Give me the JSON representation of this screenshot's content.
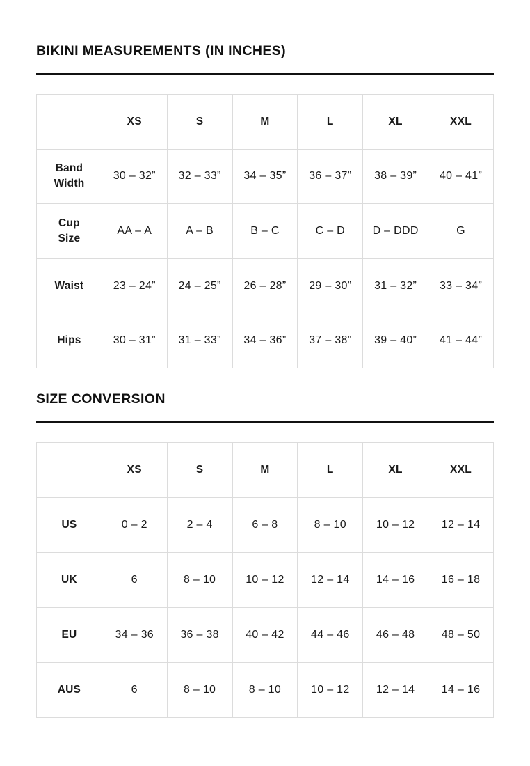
{
  "theme": {
    "background": "#ffffff",
    "text_color": "#1a1a1a",
    "table_border_color": "#dcdcdc",
    "title_rule_color": "#111111"
  },
  "sections": [
    {
      "title": "BIKINI MEASUREMENTS (IN INCHES)",
      "table": {
        "columns": [
          "",
          "XS",
          "S",
          "M",
          "L",
          "XL",
          "XXL"
        ],
        "rows": [
          {
            "label": "Band Width",
            "values": [
              "30 – 32”",
              "32 – 33”",
              "34 – 35”",
              "36 – 37”",
              "38 – 39”",
              "40 – 41”"
            ]
          },
          {
            "label": "Cup Size",
            "values": [
              "AA – A",
              "A – B",
              "B – C",
              "C – D",
              "D – DDD",
              "G"
            ]
          },
          {
            "label": "Waist",
            "values": [
              "23 – 24”",
              "24 – 25”",
              "26 – 28”",
              "29 – 30”",
              "31 – 32”",
              "33 – 34”"
            ]
          },
          {
            "label": "Hips",
            "values": [
              "30 – 31”",
              "31 – 33”",
              "34 – 36”",
              "37 – 38”",
              "39 – 40”",
              "41 – 44”"
            ]
          }
        ]
      }
    },
    {
      "title": "SIZE CONVERSION",
      "table": {
        "columns": [
          "",
          "XS",
          "S",
          "M",
          "L",
          "XL",
          "XXL"
        ],
        "rows": [
          {
            "label": "US",
            "values": [
              "0 – 2",
              "2 – 4",
              "6 – 8",
              "8 – 10",
              "10 – 12",
              "12 – 14"
            ]
          },
          {
            "label": "UK",
            "values": [
              "6",
              "8 – 10",
              "10 – 12",
              "12 – 14",
              "14 – 16",
              "16 – 18"
            ]
          },
          {
            "label": "EU",
            "values": [
              "34 – 36",
              "36 – 38",
              "40 – 42",
              "44 – 46",
              "46 – 48",
              "48 – 50"
            ]
          },
          {
            "label": "AUS",
            "values": [
              "6",
              "8 – 10",
              "8 – 10",
              "10 – 12",
              "12 – 14",
              "14 – 16"
            ]
          }
        ]
      }
    }
  ]
}
